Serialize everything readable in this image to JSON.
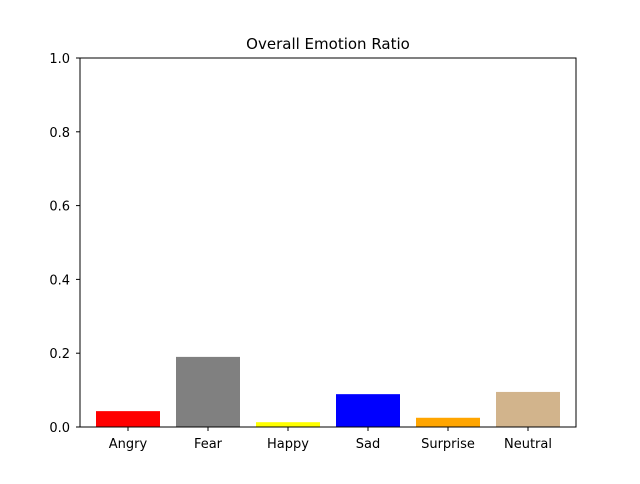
{
  "chart_data": {
    "type": "bar",
    "title": "Overall Emotion Ratio",
    "xlabel": "",
    "ylabel": "",
    "categories": [
      "Angry",
      "Fear",
      "Happy",
      "Sad",
      "Surprise",
      "Neutral"
    ],
    "values": [
      0.043,
      0.19,
      0.013,
      0.089,
      0.025,
      0.095
    ],
    "colors": [
      "#ff0000",
      "#808080",
      "#ffff00",
      "#0000ff",
      "#ffa500",
      "#d2b48c"
    ],
    "ylim": [
      0,
      1.0
    ],
    "yticks": [
      "0.0",
      "0.2",
      "0.4",
      "0.6",
      "0.8",
      "1.0"
    ],
    "grid": false,
    "legend": "none"
  }
}
